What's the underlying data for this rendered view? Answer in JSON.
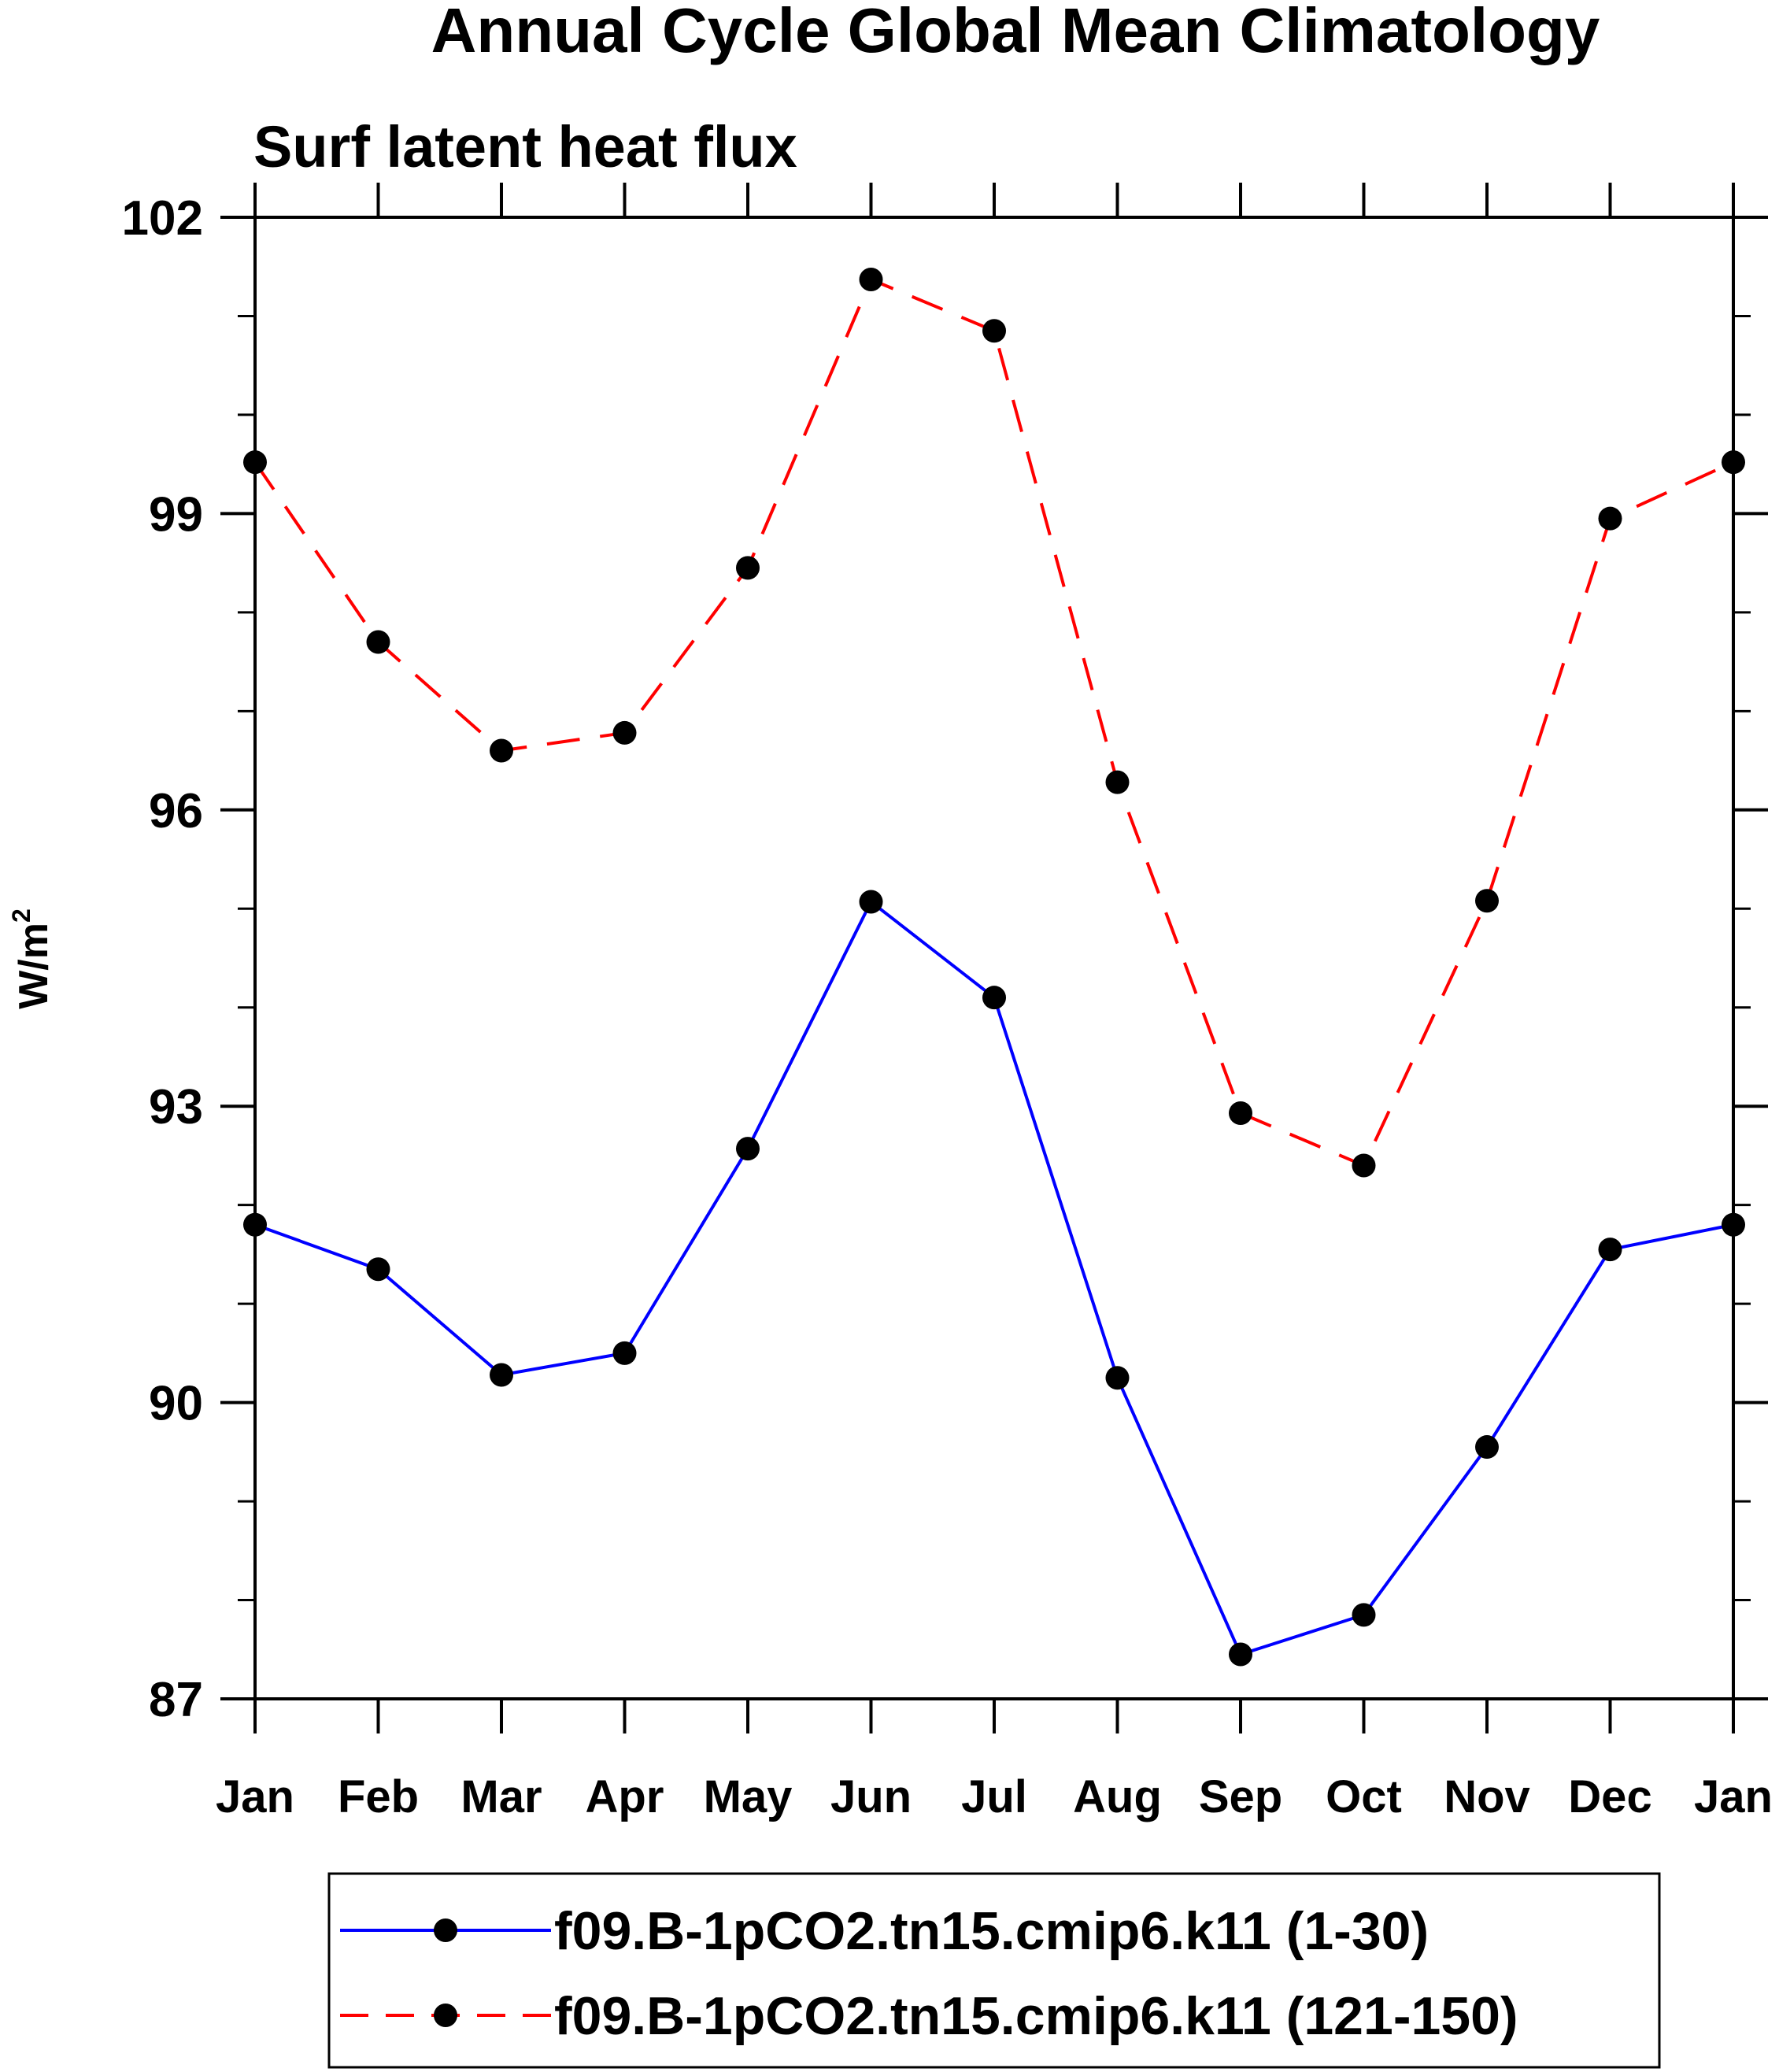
{
  "chart_data": {
    "type": "line",
    "title": "Annual Cycle Global Mean Climatology",
    "subtitle": "Surf latent heat flux",
    "ylabel": "W/m",
    "ylabel_sup": "2",
    "xlabel": "",
    "categories": [
      "Jan",
      "Feb",
      "Mar",
      "Apr",
      "May",
      "Jun",
      "Jul",
      "Aug",
      "Sep",
      "Oct",
      "Nov",
      "Dec",
      "Jan"
    ],
    "ylim": [
      87,
      102
    ],
    "yticks": [
      87,
      90,
      93,
      96,
      99,
      102
    ],
    "y_minor_step": 1,
    "grid": false,
    "legend_position": "bottom-center",
    "series": [
      {
        "name": "f09.B-1pCO2.tn15.cmip6.k11 (1-30)",
        "color": "#0000ff",
        "line_style": "solid",
        "marker": "filled-circle",
        "values": [
          91.8,
          91.35,
          90.28,
          90.5,
          92.57,
          95.07,
          94.1,
          90.25,
          87.45,
          87.85,
          89.55,
          91.55,
          91.8
        ]
      },
      {
        "name": "f09.B-1pCO2.tn15.cmip6.k11 (121-150)",
        "color": "#ff0000",
        "line_style": "dashed",
        "marker": "filled-circle",
        "values": [
          99.52,
          97.7,
          96.6,
          96.78,
          98.45,
          101.37,
          100.85,
          96.28,
          92.93,
          92.4,
          95.08,
          98.95,
          99.52
        ]
      }
    ]
  }
}
